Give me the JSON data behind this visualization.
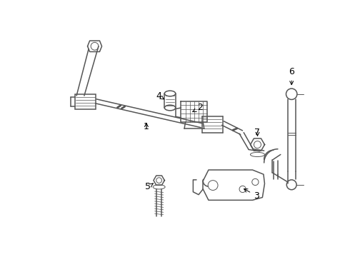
{
  "background_color": "#ffffff",
  "line_color": "#555555",
  "label_color": "#000000",
  "figsize": [
    4.9,
    3.6
  ],
  "dpi": 100
}
